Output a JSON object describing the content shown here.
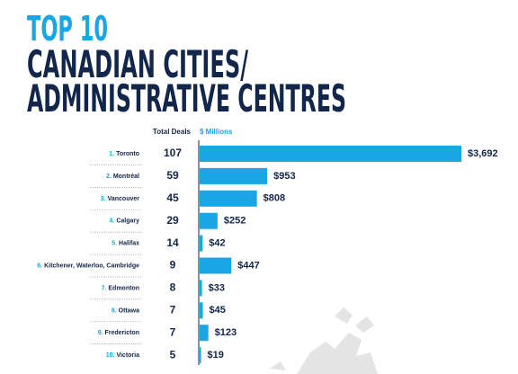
{
  "chart_data": {
    "type": "bar",
    "title": [
      "TOP 10",
      "CANADIAN CITIES/",
      "ADMINISTRATIVE CENTRES"
    ],
    "deals_header": "Total Deals",
    "value_header": "$ Millions",
    "ranks": [
      "1.",
      "2.",
      "3.",
      "4.",
      "5.",
      "6.",
      "7.",
      "8.",
      "9.",
      "10."
    ],
    "categories": [
      "Toronto",
      "Montréal",
      "Vancouver",
      "Calgary",
      "Halifax",
      "Kitchener, Waterloo, Cambridge",
      "Edmonton",
      "Ottawa",
      "Fredericton",
      "Victoria"
    ],
    "deals": [
      107,
      59,
      45,
      29,
      14,
      9,
      8,
      7,
      7,
      5
    ],
    "values": [
      3692,
      953,
      808,
      252,
      42,
      447,
      33,
      45,
      123,
      19
    ],
    "value_labels": [
      "$3,692",
      "$953",
      "$808",
      "$252",
      "$42",
      "$447",
      "$33",
      "$45",
      "$123",
      "$19"
    ],
    "color": "#1aa6e4"
  }
}
